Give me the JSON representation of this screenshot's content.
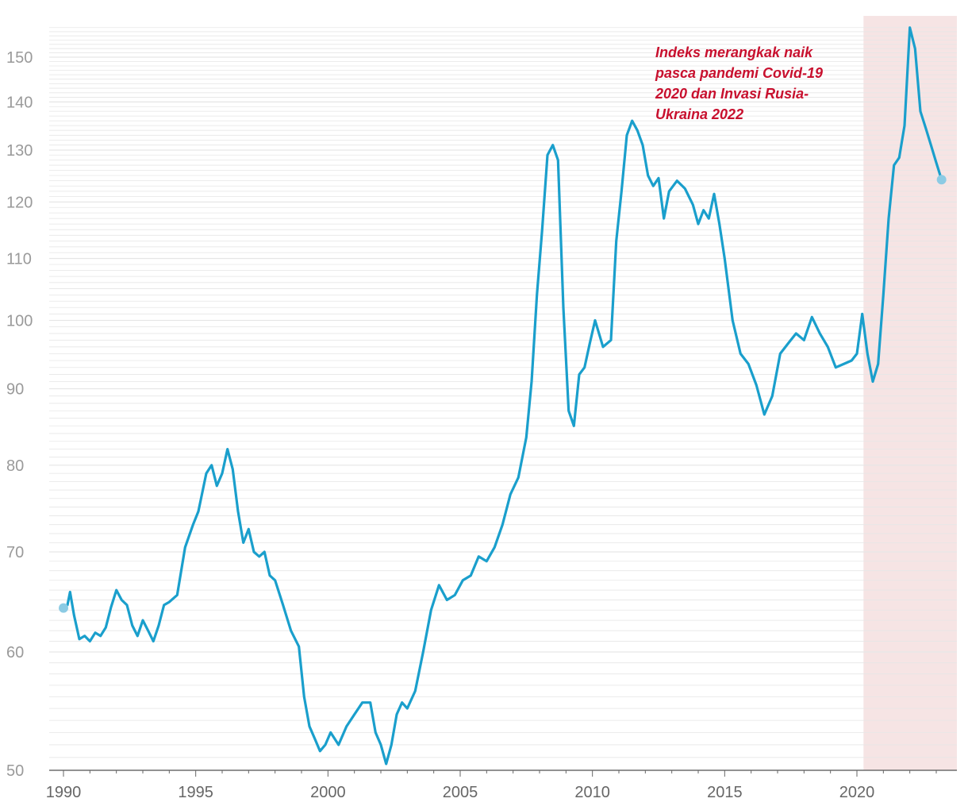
{
  "chart_data": {
    "type": "line",
    "title": "",
    "xlabel": "",
    "ylabel": "",
    "x_scale": "linear",
    "y_scale": "log",
    "xlim": [
      1990.0,
      2024.0
    ],
    "ylim": [
      50,
      157
    ],
    "y_ticks": [
      50,
      60,
      70,
      80,
      90,
      100,
      110,
      120,
      130,
      140,
      150
    ],
    "x_ticks": [
      1990,
      1995,
      2000,
      2005,
      2010,
      2015,
      2020
    ],
    "grid": "horizontal",
    "legend": "none",
    "colors": {
      "line": "#1a9fcc",
      "endpoint": "#8ccbe4",
      "highlight_band": "#f6e4e4",
      "annotation": "#c8102e",
      "grid": "#e6e6e6",
      "tick_text": "#9a9a9a"
    },
    "highlight": {
      "x_start": 2020.25,
      "x_end": 2024.0
    },
    "annotation": {
      "lines": [
        "Indeks merangkak naik",
        "pasca pandemi Covid-19",
        "2020 dan Invasi Rusia-",
        "Ukraina 2022"
      ]
    },
    "series": [
      {
        "x": [
          1990.0,
          1990.15,
          1990.25,
          1990.4,
          1990.6,
          1990.8,
          1991.0,
          1991.2,
          1991.4,
          1991.6,
          1991.8,
          1992.0,
          1992.2,
          1992.4,
          1992.6,
          1992.8,
          1993.0,
          1993.2,
          1993.4,
          1993.6,
          1993.8,
          1994.0,
          1994.3,
          1994.6,
          1994.9,
          1995.1,
          1995.4,
          1995.6,
          1995.8,
          1996.0,
          1996.2,
          1996.4,
          1996.6,
          1996.8,
          1997.0,
          1997.2,
          1997.4,
          1997.6,
          1997.8,
          1998.0,
          1998.3,
          1998.6,
          1998.9,
          1999.1,
          1999.3,
          1999.5,
          1999.7,
          1999.9,
          2000.1,
          2000.4,
          2000.7,
          2001.0,
          2001.3,
          2001.6,
          2001.8,
          2002.0,
          2002.2,
          2002.4,
          2002.6,
          2002.8,
          2003.0,
          2003.3,
          2003.6,
          2003.9,
          2004.2,
          2004.5,
          2004.8,
          2005.1,
          2005.4,
          2005.7,
          2006.0,
          2006.3,
          2006.6,
          2006.9,
          2007.2,
          2007.5,
          2007.7,
          2007.9,
          2008.1,
          2008.3,
          2008.5,
          2008.7,
          2008.9,
          2009.1,
          2009.3,
          2009.5,
          2009.7,
          2009.9,
          2010.1,
          2010.4,
          2010.7,
          2010.9,
          2011.1,
          2011.3,
          2011.5,
          2011.7,
          2011.9,
          2012.1,
          2012.3,
          2012.5,
          2012.7,
          2012.9,
          2013.2,
          2013.5,
          2013.8,
          2014.0,
          2014.2,
          2014.4,
          2014.6,
          2014.8,
          2015.0,
          2015.3,
          2015.6,
          2015.9,
          2016.2,
          2016.5,
          2016.8,
          2017.1,
          2017.4,
          2017.7,
          2018.0,
          2018.3,
          2018.6,
          2018.9,
          2019.2,
          2019.5,
          2019.8,
          2020.0,
          2020.2,
          2020.4,
          2020.6,
          2020.8,
          2021.0,
          2021.2,
          2021.4,
          2021.6,
          2021.8,
          2022.0,
          2022.2,
          2022.4,
          2022.6,
          2022.8,
          2023.0,
          2023.2
        ],
        "values": [
          64.2,
          64.5,
          65.8,
          63.5,
          61.2,
          61.5,
          61.0,
          61.8,
          61.5,
          62.3,
          64.3,
          66.0,
          65.0,
          64.5,
          62.5,
          61.5,
          63.0,
          62.0,
          61.0,
          62.5,
          64.5,
          64.8,
          65.5,
          70.5,
          73.0,
          74.5,
          79.0,
          80.0,
          77.5,
          79.0,
          82.0,
          79.5,
          74.5,
          71.0,
          72.5,
          70.0,
          69.5,
          70.0,
          67.5,
          67.0,
          64.5,
          62.0,
          60.5,
          56.0,
          53.5,
          52.5,
          51.5,
          52.0,
          53.0,
          52.0,
          53.5,
          54.5,
          55.5,
          55.5,
          53.0,
          52.0,
          50.5,
          52.0,
          54.5,
          55.5,
          55.0,
          56.5,
          60.0,
          64.0,
          66.5,
          65.0,
          65.5,
          67.0,
          67.5,
          69.5,
          69.0,
          70.5,
          73.0,
          76.5,
          78.5,
          83.5,
          91.0,
          104.0,
          115.0,
          129.0,
          131.0,
          128.0,
          102.0,
          87.0,
          85.0,
          92.0,
          93.0,
          96.5,
          100.0,
          96.0,
          97.0,
          113.0,
          122.0,
          133.0,
          136.0,
          134.0,
          131.0,
          125.0,
          123.0,
          124.5,
          117.0,
          122.0,
          124.0,
          122.5,
          119.5,
          116.0,
          118.5,
          117.0,
          121.5,
          116.0,
          110.0,
          100.0,
          95.0,
          93.5,
          90.5,
          86.5,
          89.0,
          95.0,
          96.5,
          98.0,
          97.0,
          100.5,
          98.0,
          96.0,
          93.0,
          93.5,
          94.0,
          95.0,
          101.0,
          95.0,
          91.0,
          93.5,
          104.0,
          117.0,
          127.0,
          128.5,
          135.0,
          157.0,
          152.0,
          138.0,
          134.5,
          131.0,
          127.5,
          124.2
        ]
      }
    ]
  }
}
